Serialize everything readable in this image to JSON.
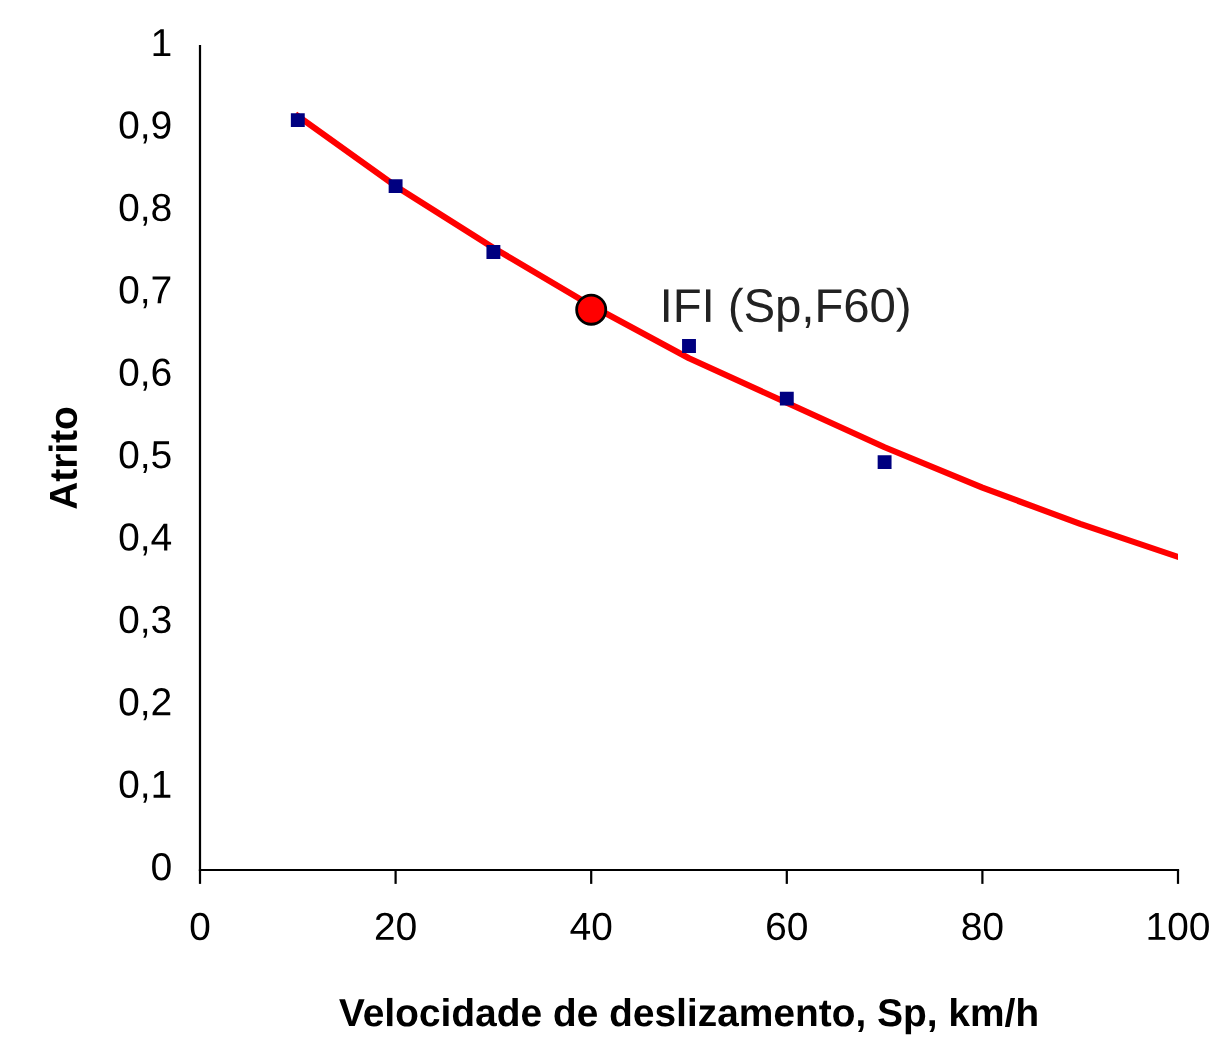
{
  "chart_data": {
    "type": "scatter",
    "xlabel": "Velocidade de deslizamento, Sp, km/h",
    "ylabel": "Atrito",
    "xlim": [
      0,
      100
    ],
    "xticks": [
      0,
      20,
      40,
      60,
      80,
      100
    ],
    "ylim": [
      0,
      1
    ],
    "yticks": [
      {
        "value": 0,
        "label": "0"
      },
      {
        "value": 0.1,
        "label": "0,1"
      },
      {
        "value": 0.2,
        "label": "0,2"
      },
      {
        "value": 0.3,
        "label": "0,3"
      },
      {
        "value": 0.4,
        "label": "0,4"
      },
      {
        "value": 0.5,
        "label": "0,5"
      },
      {
        "value": 0.6,
        "label": "0,6"
      },
      {
        "value": 0.7,
        "label": "0,7"
      },
      {
        "value": 0.8,
        "label": "0,8"
      },
      {
        "value": 0.9,
        "label": "0,9"
      },
      {
        "value": 1,
        "label": "1"
      }
    ],
    "grid": false,
    "series": [
      {
        "type": "line",
        "color": "#ff0000",
        "marker": "none",
        "line_style": "solid",
        "x": [
          10,
          20,
          30,
          40,
          50,
          60,
          70,
          80,
          90,
          100
        ],
        "values": [
          0.915,
          0.83,
          0.755,
          0.685,
          0.621,
          0.567,
          0.513,
          0.464,
          0.42,
          0.38
        ]
      },
      {
        "color": "#000080",
        "marker": "square",
        "x": [
          10,
          20,
          30,
          50,
          60,
          70
        ],
        "values": [
          0.91,
          0.83,
          0.75,
          0.636,
          0.572,
          0.495
        ]
      },
      {
        "type": "scatter",
        "color": "#ff0000",
        "marker": "circle",
        "x": [
          40
        ],
        "values": [
          0.68
        ]
      }
    ],
    "annotations": [
      "IFI (Sp,F60)"
    ]
  }
}
